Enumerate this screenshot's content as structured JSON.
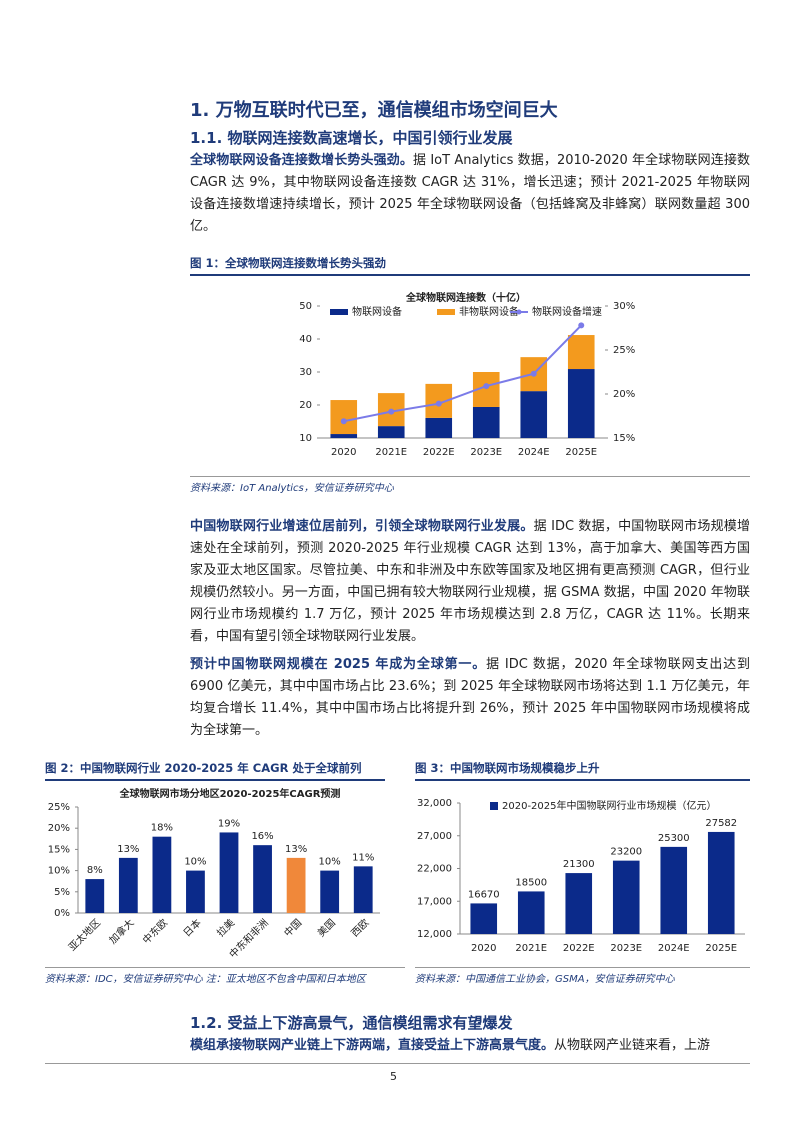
{
  "heading": "1. 万物互联时代已至，通信模组市场空间巨大",
  "section": "1.1. 物联网连接数高速增长，中国引领行业发展",
  "paragraphs": [
    {
      "lead": "全球物联网设备连接数增长势头强劲。",
      "text": "据 IoT Analytics 数据，2010-2020 年全球物联网连接数 CAGR 达 9%，其中物联网设备连接数 CAGR 达 31%，增长迅速；预计 2021-2025 年物联网设备连接数增速持续增长，预计 2025 年全球物联网设备（包括蜂窝及非蜂窝）联网数量超 300 亿。"
    },
    {
      "lead": "中国物联网行业增速位居前列，引领全球物联网行业发展。",
      "text": "据 IDC 数据，中国物联网市场规模增速处在全球前列，预测 2020-2025 年行业规模 CAGR 达到 13%，高于加拿大、美国等西方国家及亚太地区国家。尽管拉美、中东和非洲及中东欧等国家及地区拥有更高预测 CAGR，但行业规模仍然较小。另一方面，中国已拥有较大物联网行业规模，据 GSMA 数据，中国 2020 年物联网行业市场规模约 1.7 万亿，预计 2025 年市场规模达到 2.8 万亿，CAGR 达 11%。长期来看，中国有望引领全球物联网行业发展。"
    },
    {
      "lead": "预计中国物联网规模在 2025 年成为全球第一。",
      "text": "据 IDC 数据，2020 年全球物联网支出达到 6900 亿美元，其中中国市场占比 23.6%；到 2025 年全球物联网市场将达到 1.1 万亿美元，年均复合增长 11.4%，其中中国市场占比将提升到 26%，预计 2025 年中国物联网市场规模将成为全球第一。"
    }
  ],
  "figures": [
    {
      "caption": "图 1：全球物联网连接数增长势头强劲",
      "source": "资料来源：IoT Analytics，安信证券研究中心"
    },
    {
      "caption": "图 2：中国物联网行业 2020-2025 年 CAGR 处于全球前列",
      "source": "资料来源：IDC，安信证券研究中心 注：亚太地区不包含中国和日本地区"
    },
    {
      "caption": "图 3：中国物联网市场规模稳步上升",
      "source": "资料来源：中国通信工业协会，GSMA，安信证券研究中心"
    }
  ],
  "chart_data": [
    {
      "type": "stacked_bar_line",
      "title": "全球物联网连接数（十亿）",
      "categories": [
        "2020",
        "2021E",
        "2022E",
        "2023E",
        "2024E",
        "2025E"
      ],
      "series": [
        {
          "name": "物联网设备",
          "color": "#0b2a8a",
          "values": [
            11.2,
            13.6,
            16.1,
            19.4,
            24.2,
            30.9
          ]
        },
        {
          "name": "非物联网设备",
          "color": "#f39a1e",
          "values": [
            10.3,
            10.0,
            10.3,
            10.6,
            10.3,
            10.3
          ]
        },
        {
          "name": "物联网设备增速",
          "color": "#7b7be8",
          "axis": "y2",
          "values": [
            16.9,
            18.0,
            18.9,
            20.9,
            22.3,
            27.8
          ]
        }
      ],
      "ylim": [
        10,
        50
      ],
      "yticks": [
        10,
        20,
        30,
        40,
        50
      ],
      "y2lim": [
        15,
        30
      ],
      "y2ticks": [
        {
          "value": 15,
          "label": "15%"
        },
        {
          "value": 20,
          "label": "20%"
        },
        {
          "value": 25,
          "label": "25%"
        },
        {
          "value": 30,
          "label": "30%"
        }
      ]
    },
    {
      "type": "bar",
      "title": "全球物联网市场分地区2020-2025年CAGR预测",
      "categories": [
        "亚太地区",
        "加拿大",
        "中东欧",
        "日本",
        "拉美",
        "中东和非洲",
        "中国",
        "美国",
        "西欧"
      ],
      "values": [
        8,
        13,
        18,
        10,
        19,
        16,
        13,
        10,
        11
      ],
      "value_labels": [
        "8%",
        "13%",
        "18%",
        "10%",
        "19%",
        "16%",
        "13%",
        "10%",
        "11%"
      ],
      "colors": [
        "#0b2a8a",
        "#0b2a8a",
        "#0b2a8a",
        "#0b2a8a",
        "#0b2a8a",
        "#0b2a8a",
        "#f0883a",
        "#0b2a8a",
        "#0b2a8a"
      ],
      "ylim": [
        0,
        25
      ],
      "yticks": [
        {
          "value": 0,
          "label": "0%"
        },
        {
          "value": 5,
          "label": "5%"
        },
        {
          "value": 10,
          "label": "10%"
        },
        {
          "value": 15,
          "label": "15%"
        },
        {
          "value": 20,
          "label": "20%"
        },
        {
          "value": 25,
          "label": "25%"
        }
      ]
    },
    {
      "type": "bar",
      "categories": [
        "2020",
        "2021E",
        "2022E",
        "2023E",
        "2024E",
        "2025E"
      ],
      "series": [
        {
          "name": "2020-2025年中国物联网行业市场规模（亿元）",
          "color": "#0b2a8a",
          "values": [
            16670,
            18500,
            21300,
            23200,
            25300,
            27582
          ]
        }
      ],
      "ylim": [
        12000,
        32000
      ],
      "yticks": [
        {
          "value": 12000,
          "label": "12,000"
        },
        {
          "value": 17000,
          "label": "17,000"
        },
        {
          "value": 22000,
          "label": "22,000"
        },
        {
          "value": 27000,
          "label": "27,000"
        },
        {
          "value": 32000,
          "label": "32,000"
        }
      ]
    }
  ],
  "section2": "1.2. 受益上下游高景气，通信模组需求有望爆发",
  "paragraph_last": {
    "lead": "模组承接物联网产业链上下游两端，直接受益上下游高景气度。",
    "text": "从物联网产业链来看，上游"
  },
  "page_number": "5"
}
